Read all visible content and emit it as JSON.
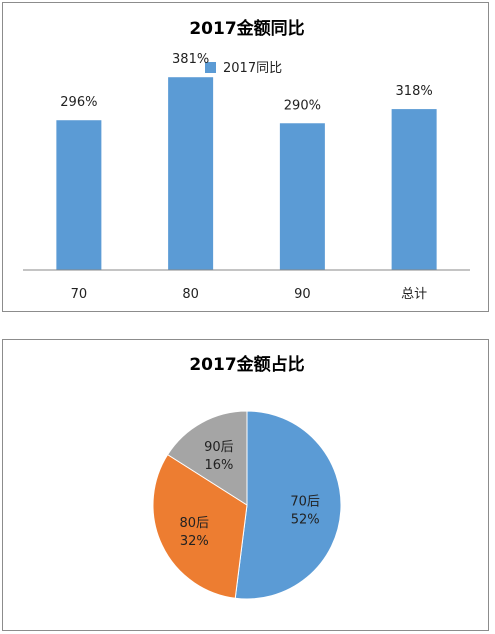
{
  "chart_data": [
    {
      "type": "bar",
      "title": "2017金额同比",
      "legend_position": "top",
      "color": "#5b9bd5",
      "series": [
        {
          "name": "2017同比",
          "values": [
            296,
            381,
            290,
            318
          ]
        }
      ],
      "categories": [
        "70",
        "80",
        "90",
        "总计"
      ],
      "data_labels": [
        "296%",
        "381%",
        "290%",
        "318%"
      ],
      "unit": "%",
      "ylim": [
        0,
        500
      ],
      "grid": false
    },
    {
      "type": "pie",
      "title": "2017金额占比",
      "slices": [
        {
          "label": "70后",
          "percent_label": "52%",
          "value": 52,
          "color": "#5b9bd5"
        },
        {
          "label": "80后",
          "percent_label": "32%",
          "value": 32,
          "color": "#ed7d31"
        },
        {
          "label": "90后",
          "percent_label": "16%",
          "value": 16,
          "color": "#a5a5a5"
        }
      ]
    }
  ]
}
